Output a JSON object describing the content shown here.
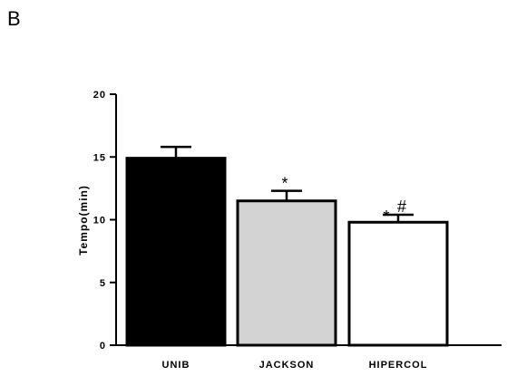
{
  "panel_label": "B",
  "chart_data": {
    "type": "bar",
    "categories": [
      "UNIB",
      "JACKSON",
      "HIPERCOL"
    ],
    "values": [
      14.9,
      11.5,
      9.8
    ],
    "errors": [
      0.9,
      0.8,
      0.6
    ],
    "colors": [
      "#000000",
      "#d3d3d3",
      "#ffffff"
    ],
    "annotations": [
      "",
      "*",
      "* #"
    ],
    "title": "",
    "xlabel": "",
    "ylabel": "Tempo(min)",
    "ylim": [
      0,
      20
    ],
    "yticks": [
      0,
      5,
      10,
      15,
      20
    ],
    "grid": false,
    "legend": "none"
  }
}
